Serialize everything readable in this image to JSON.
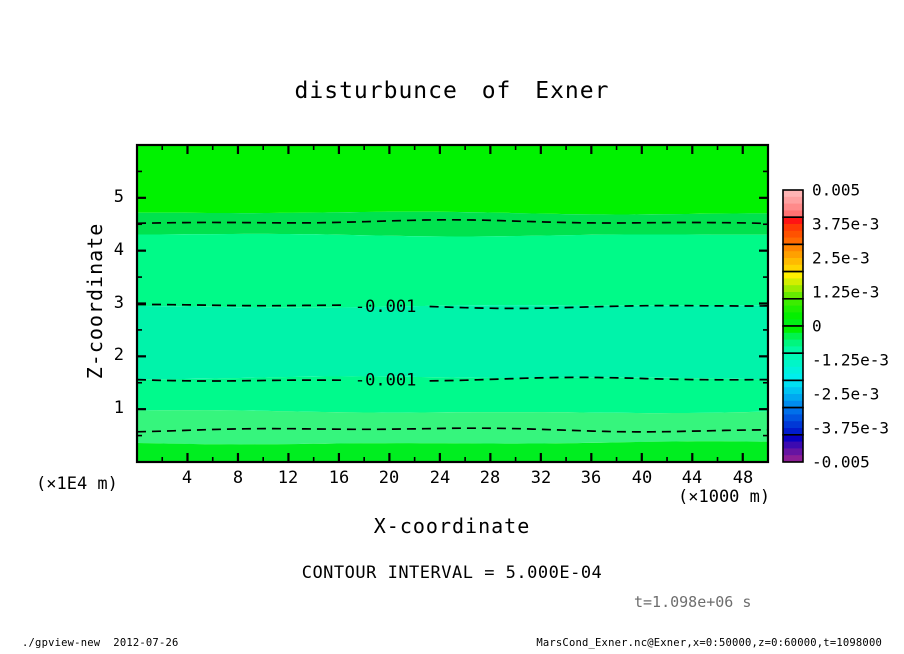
{
  "chart_data": {
    "type": "filled_contour",
    "title": "disturbunce of Exner",
    "xlabel": "X-coordinate",
    "ylabel": "Z-coordinate",
    "x_axis_unit": "(×1000 m)",
    "y_axis_unit": "(×1E4 m)",
    "xlim": [
      0,
      50
    ],
    "ylim": [
      0,
      6
    ],
    "x_major_ticks": [
      4,
      8,
      12,
      16,
      20,
      24,
      28,
      32,
      36,
      40,
      44,
      48
    ],
    "x_minor_step": 2,
    "y_major_ticks": [
      1,
      2,
      3,
      4,
      5
    ],
    "y_minor_step": 0.5,
    "grid": false,
    "fill_bands": [
      {
        "z_from": 4.71,
        "z_to": 6.0,
        "color": "#00F200"
      },
      {
        "z_from": 4.3,
        "z_to": 4.71,
        "color": "#00E24E"
      },
      {
        "z_from": 2.95,
        "z_to": 4.3,
        "color": "#00FA88"
      },
      {
        "z_from": 1.59,
        "z_to": 2.95,
        "color": "#00F3AA"
      },
      {
        "z_from": 0.95,
        "z_to": 1.59,
        "color": "#00FA8C"
      },
      {
        "z_from": 0.36,
        "z_to": 0.95,
        "color": "#36F57D"
      },
      {
        "z_from": 0.0,
        "z_to": 0.36,
        "color": "#00EE20"
      }
    ],
    "contour_lines": [
      {
        "z": 4.54,
        "label": ""
      },
      {
        "z": 2.95,
        "label": "-0.001",
        "label_x": 19.7
      },
      {
        "z": 1.56,
        "label": "-0.001",
        "label_x": 19.7
      },
      {
        "z": 0.61,
        "label": ""
      }
    ],
    "contour_interval_label": "CONTOUR INTERVAL = 5.000E-04",
    "time_label": "t=1.098e+06 s",
    "colorbar": {
      "labels": [
        "0.005",
        "3.75e-3",
        "2.5e-3",
        "1.25e-3",
        "0",
        "-1.25e-3",
        "-2.5e-3",
        "-3.75e-3",
        "-0.005"
      ],
      "boxes": [
        [
          "#FFB4B4",
          "#FFA0A0",
          "#FF8A8A",
          "#FF7272"
        ],
        [
          "#FF1414",
          "#FF3A06",
          "#FF5200",
          "#FF6A00"
        ],
        [
          "#FF8600",
          "#FFA000",
          "#FFBA00",
          "#FFD400"
        ],
        [
          "#FFF000",
          "#D2EE00",
          "#9CEC00",
          "#66EA00"
        ],
        [
          "#3CEC00",
          "#1EEE00",
          "#04EF00",
          "#00F014"
        ],
        [
          "#00F000",
          "#00F34C",
          "#00F67E",
          "#00F9A4"
        ],
        [
          "#00FAB4",
          "#00F6C8",
          "#00F2DC",
          "#00EEEC"
        ],
        [
          "#00DFF2",
          "#00C4F2",
          "#00A8F0",
          "#008CEE"
        ],
        [
          "#0070EA",
          "#0054E0",
          "#0038D6",
          "#001CCC"
        ],
        [
          "#0A00C0",
          "#3C0AB0",
          "#6614A2",
          "#8C1E96"
        ]
      ]
    }
  },
  "footer": {
    "left": "./gpview-new  2012-07-26",
    "right": "MarsCond_Exner.nc@Exner,x=0:50000,z=0:60000,t=1098000"
  }
}
